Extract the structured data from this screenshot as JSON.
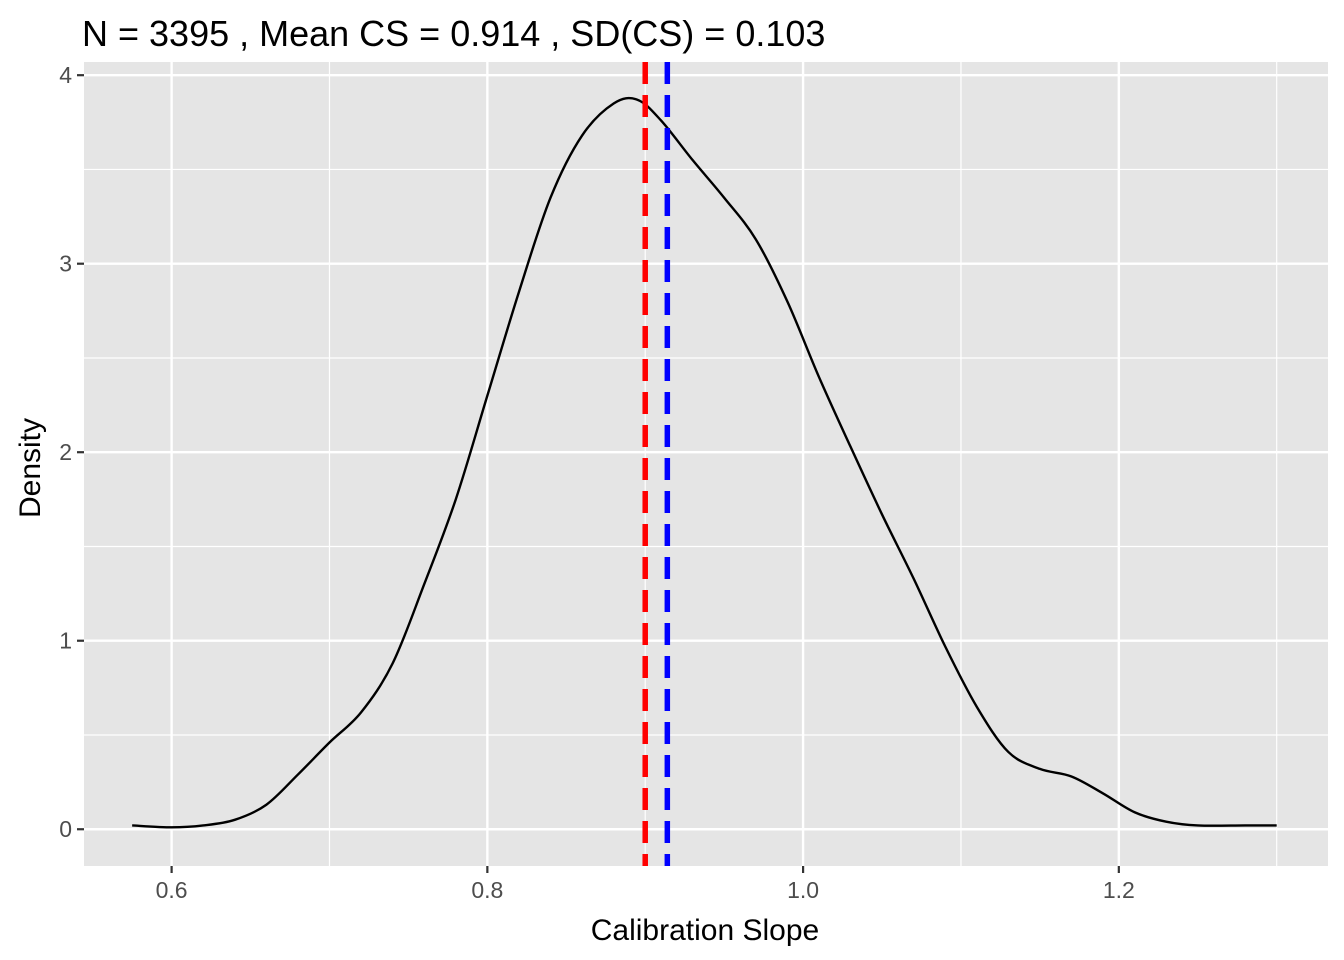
{
  "chart_data": {
    "type": "line",
    "title": "N =  3395 , Mean CS =  0.914 , SD(CS) =  0.103",
    "xlabel": "Calibration Slope",
    "ylabel": "Density",
    "xlim": [
      0.5445,
      1.3325
    ],
    "ylim": [
      -0.195,
      4.07
    ],
    "x_ticks": [
      0.6,
      0.8,
      1.0,
      1.2
    ],
    "x_tick_labels": [
      "0.6",
      "0.8",
      "1.0",
      "1.2"
    ],
    "x_minor_ticks": [
      0.7,
      0.9,
      1.1,
      1.3
    ],
    "y_ticks": [
      0,
      1,
      2,
      3,
      4
    ],
    "y_tick_labels": [
      "0",
      "1",
      "2",
      "3",
      "4"
    ],
    "y_minor_ticks": [
      0.5,
      1.5,
      2.5,
      3.5
    ],
    "grid": true,
    "legend": "none",
    "panel_color": "#e5e5e5",
    "grid_color": "#ffffff",
    "series": [
      {
        "color": "#000000",
        "x": [
          0.575,
          0.6,
          0.62,
          0.64,
          0.66,
          0.68,
          0.7,
          0.72,
          0.74,
          0.76,
          0.78,
          0.8,
          0.82,
          0.84,
          0.86,
          0.88,
          0.895,
          0.91,
          0.93,
          0.95,
          0.97,
          0.99,
          1.01,
          1.03,
          1.05,
          1.07,
          1.09,
          1.11,
          1.13,
          1.15,
          1.17,
          1.19,
          1.21,
          1.23,
          1.25,
          1.28,
          1.3
        ],
        "y": [
          0.02,
          0.01,
          0.02,
          0.05,
          0.13,
          0.29,
          0.46,
          0.62,
          0.88,
          1.3,
          1.75,
          2.3,
          2.85,
          3.35,
          3.68,
          3.85,
          3.87,
          3.76,
          3.55,
          3.35,
          3.13,
          2.8,
          2.4,
          2.03,
          1.67,
          1.33,
          0.97,
          0.65,
          0.41,
          0.32,
          0.28,
          0.19,
          0.09,
          0.04,
          0.02,
          0.02,
          0.02
        ]
      }
    ],
    "vlines": [
      {
        "x": 0.9,
        "color": "#ff0000",
        "dash": "dashed"
      },
      {
        "x": 0.914,
        "color": "#0000ff",
        "dash": "dashed"
      }
    ]
  }
}
